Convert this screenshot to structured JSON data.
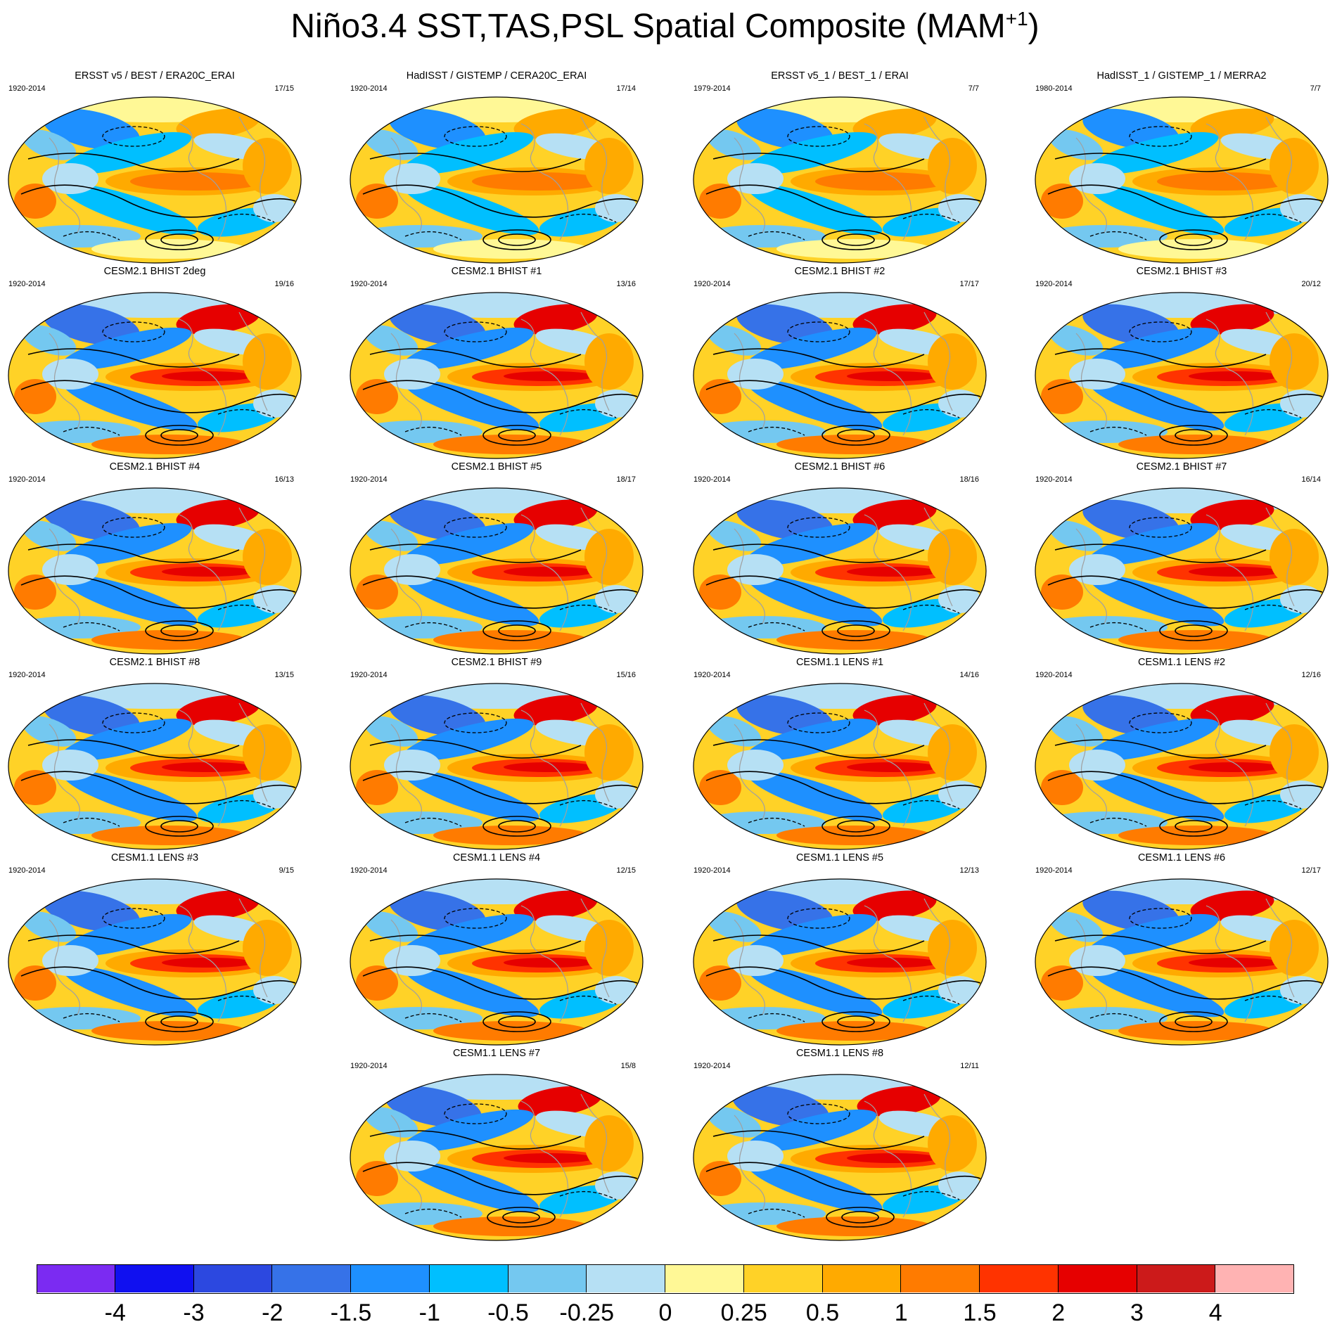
{
  "title": {
    "main": "Niño3.4 SST,TAS,PSL Spatial Composite (MAM",
    "sup": "+1",
    "close": ")"
  },
  "panels": [
    {
      "title": "ERSST v5 / BEST / ERA20C_ERAI",
      "years": "1920-2014",
      "count": "17/15",
      "style": "obs"
    },
    {
      "title": "HadISST / GISTEMP / CERA20C_ERAI",
      "years": "1920-2014",
      "count": "17/14",
      "style": "obs"
    },
    {
      "title": "ERSST v5_1 / BEST_1 / ERAI",
      "years": "1979-2014",
      "count": "7/7",
      "style": "obs"
    },
    {
      "title": "HadISST_1 / GISTEMP_1 / MERRA2",
      "years": "1980-2014",
      "count": "7/7",
      "style": "obs"
    },
    {
      "title": "CESM2.1 BHIST 2deg",
      "years": "1920-2014",
      "count": "19/16",
      "style": "model"
    },
    {
      "title": "CESM2.1 BHIST #1",
      "years": "1920-2014",
      "count": "13/16",
      "style": "model"
    },
    {
      "title": "CESM2.1 BHIST #2",
      "years": "1920-2014",
      "count": "17/17",
      "style": "model"
    },
    {
      "title": "CESM2.1 BHIST #3",
      "years": "1920-2014",
      "count": "20/12",
      "style": "model"
    },
    {
      "title": "CESM2.1 BHIST #4",
      "years": "1920-2014",
      "count": "16/13",
      "style": "model"
    },
    {
      "title": "CESM2.1 BHIST #5",
      "years": "1920-2014",
      "count": "18/17",
      "style": "model"
    },
    {
      "title": "CESM2.1 BHIST #6",
      "years": "1920-2014",
      "count": "18/16",
      "style": "model"
    },
    {
      "title": "CESM2.1 BHIST #7",
      "years": "1920-2014",
      "count": "16/14",
      "style": "model"
    },
    {
      "title": "CESM2.1 BHIST #8",
      "years": "1920-2014",
      "count": "13/15",
      "style": "model"
    },
    {
      "title": "CESM2.1 BHIST #9",
      "years": "1920-2014",
      "count": "15/16",
      "style": "model"
    },
    {
      "title": "CESM1.1 LENS #1",
      "years": "1920-2014",
      "count": "14/16",
      "style": "model"
    },
    {
      "title": "CESM1.1 LENS #2",
      "years": "1920-2014",
      "count": "12/16",
      "style": "model"
    },
    {
      "title": "CESM1.1 LENS #3",
      "years": "1920-2014",
      "count": "9/15",
      "style": "model"
    },
    {
      "title": "CESM1.1 LENS #4",
      "years": "1920-2014",
      "count": "12/15",
      "style": "model"
    },
    {
      "title": "CESM1.1 LENS #5",
      "years": "1920-2014",
      "count": "12/13",
      "style": "model"
    },
    {
      "title": "CESM1.1 LENS #6",
      "years": "1920-2014",
      "count": "12/17",
      "style": "model"
    },
    {
      "title": "CESM1.1 LENS #7",
      "years": "1920-2014",
      "count": "15/8",
      "style": "model"
    },
    {
      "title": "CESM1.1 LENS #8",
      "years": "1920-2014",
      "count": "12/11",
      "style": "model"
    }
  ],
  "colorbar": {
    "colors": [
      "#7b2bf2",
      "#1010f0",
      "#2c48e0",
      "#3672e8",
      "#1e90ff",
      "#00bfff",
      "#74c8f0",
      "#b6e0f4",
      "#fff896",
      "#ffd227",
      "#ffaa00",
      "#ff7b00",
      "#ff3300",
      "#e60000",
      "#cc1a1a",
      "#ffb3b3"
    ],
    "labels": [
      "-4",
      "-3",
      "-2",
      "-1.5",
      "-1",
      "-0.5",
      "-0.25",
      "0",
      "0.25",
      "0.5",
      "1",
      "1.5",
      "2",
      "3",
      "4"
    ]
  }
}
